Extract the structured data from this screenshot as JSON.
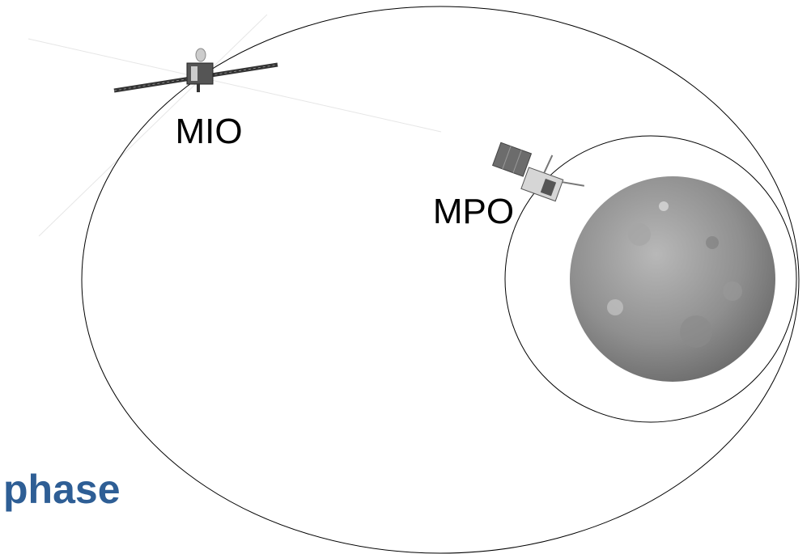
{
  "labels": {
    "mio": "MIO",
    "mpo": "MPO",
    "phase": "phase"
  }
}
